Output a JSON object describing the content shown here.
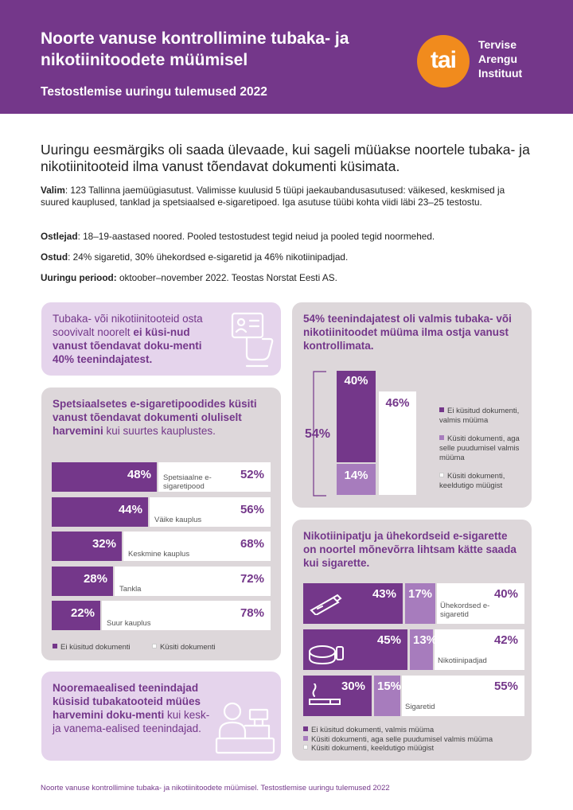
{
  "header": {
    "title": "Noorte vanuse kontrollimine tubaka- ja nikotiinitoodete müümisel",
    "subtitle": "Testostlemise uuringu tulemused 2022",
    "logo_mark": "tai",
    "logo_text_1": "Tervise",
    "logo_text_2": "Arengu",
    "logo_text_3": "Instituut"
  },
  "intro": "Uuringu eesmärgiks oli saada ülevaade, kui sageli müüakse noortele tubaka- ja nikotiinitooteid ilma vanust tõendavat dokumenti küsimata.",
  "meta": {
    "sample_label": "Valim",
    "sample_text": ": 123 Tallinna jaemüügiasutust. Valimisse kuulusid 5 tüüpi jaekaubandusasutused: väikesed, keskmised ja suured kauplused, tanklad ja spetsiaalsed e-sigaretipoed. Iga asutuse tüübi kohta viidi läbi 23–25 testostu.",
    "buyers_label": "Ostlejad",
    "buyers_text": ": 18–19-aastased noored. Pooled testostudest tegid neiud ja pooled tegid noormehed.",
    "purchases_label": "Ostud",
    "purchases_text": ": 24% sigaretid, 30% ühekordsed e-sigaretid ja 46% nikotiinipadjad.",
    "period_label": "Uuringu periood:",
    "period_text": " oktoober–november 2022. Teostas Norstat Eesti AS."
  },
  "card_id": {
    "text_normal": "Tubaka- või nikotiinitooteid osta soovivalt noorelt ",
    "text_bold": "ei küsi-nud vanust tõendavat doku-menti 40% teenindajatest.",
    "icon": "id-card-hand-icon"
  },
  "card_store": {
    "title_bold": "Spetsiaalsetes e-sigaretipoodides küsiti vanust tõendavat dokumenti oluliselt harvemini",
    "title_normal": " kui suurtes kauplustes.",
    "rows": [
      {
        "label": "Spetsiaalne e-sigaretipood",
        "not_asked": "48%",
        "asked": "52%"
      },
      {
        "label": "Väike kauplus",
        "not_asked": "44%",
        "asked": "56%"
      },
      {
        "label": "Keskmine kauplus",
        "not_asked": "32%",
        "asked": "68%"
      },
      {
        "label": "Tankla",
        "not_asked": "28%",
        "asked": "72%"
      },
      {
        "label": "Suur kauplus",
        "not_asked": "22%",
        "asked": "78%"
      }
    ],
    "legend_not_asked": "Ei küsitud dokumenti",
    "legend_asked": "Küsiti dokumenti"
  },
  "card_ready": {
    "title": "54% teenindajatest oli valmis tubaka- või nikotiinitoodet müüma ilma ostja vanust kontrollimata.",
    "bracket_label": "54%",
    "col_dark": "40%",
    "col_mid": "14%",
    "col_white": "46%",
    "legend": [
      "Ei küsitud dokumenti, valmis müüma",
      "Küsiti dokumenti, aga selle puudumisel valmis müüma",
      "Küsiti dokumenti, keeldutigo müügist"
    ]
  },
  "card_young": {
    "title_bold": "Nooremaealised teenindajad küsisid tubakatooteid müües harvemini doku-menti",
    "title_normal": " kui kesk- ja vanema-ealised teenindajad.",
    "icon": "cashier-icon"
  },
  "card_products": {
    "title": "Nikotiinipatju ja ühekordseid e-sigarette on noortel mõnevõrra lihtsam kätte saada kui sigarette.",
    "rows": [
      {
        "label": "Ühekordsed e-sigaretid",
        "icon": "e-cigarette-icon",
        "dark": "43%",
        "mid": "17%",
        "white": "40%"
      },
      {
        "label": "Nikotiinipadjad",
        "icon": "nicotine-pouch-icon",
        "dark": "45%",
        "mid": "13%",
        "white": "42%"
      },
      {
        "label": "Sigaretid",
        "icon": "cigarette-icon",
        "dark": "30%",
        "mid": "15%",
        "white": "55%"
      }
    ],
    "legend": [
      "Ei küsitud dokumenti, valmis müüma",
      "Küsiti dokumenti, aga selle puudumisel valmis müüma",
      "Küsiti dokumenti, keeldutigo müügist"
    ]
  },
  "footer": "Noorte vanuse kontrollimine tubaka- ja nikotiinitoodete müümisel. Testostlemise uuringu tulemused 2022",
  "colors": {
    "primary": "#74378a",
    "medium": "#a77cbd",
    "light": "#e5d4ec",
    "grey": "#ddd7da",
    "orange": "#f18b1d"
  }
}
